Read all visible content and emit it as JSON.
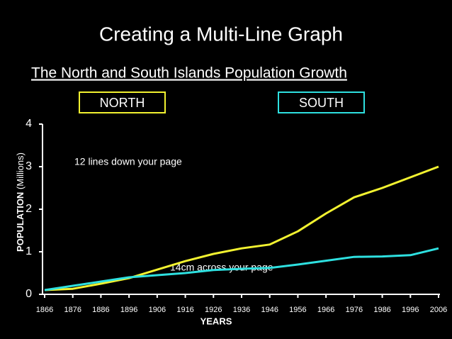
{
  "chart_data": {
    "type": "line",
    "title": "Creating a Multi-Line Graph",
    "subtitle": "The North and South Islands Population Growth",
    "x_label": "YEARS",
    "y_label": "POPULATION",
    "y_label_unit": "(Millions)",
    "annotations": [
      "12 lines down your page",
      "14cm across your page"
    ],
    "x": [
      1866,
      1876,
      1886,
      1896,
      1906,
      1916,
      1926,
      1936,
      1946,
      1956,
      1966,
      1976,
      1986,
      1996,
      2006
    ],
    "series": [
      {
        "name": "NORTH",
        "color": "#f2f230",
        "values": [
          0.1,
          0.13,
          0.25,
          0.38,
          0.58,
          0.78,
          0.95,
          1.08,
          1.17,
          1.48,
          1.9,
          2.28,
          2.5,
          2.75,
          3.0
        ]
      },
      {
        "name": "SOUTH",
        "color": "#2ee0e0",
        "values": [
          0.1,
          0.2,
          0.3,
          0.4,
          0.45,
          0.5,
          0.57,
          0.6,
          0.62,
          0.7,
          0.79,
          0.88,
          0.89,
          0.92,
          1.08
        ]
      }
    ],
    "xlim": [
      1866,
      2006
    ],
    "xticks": [
      1866,
      1876,
      1886,
      1896,
      1906,
      1916,
      1926,
      1936,
      1946,
      1956,
      1966,
      1976,
      1986,
      1996,
      2006
    ],
    "ylim": [
      0,
      4
    ],
    "yticks": [
      0,
      1,
      2,
      3,
      4
    ]
  }
}
